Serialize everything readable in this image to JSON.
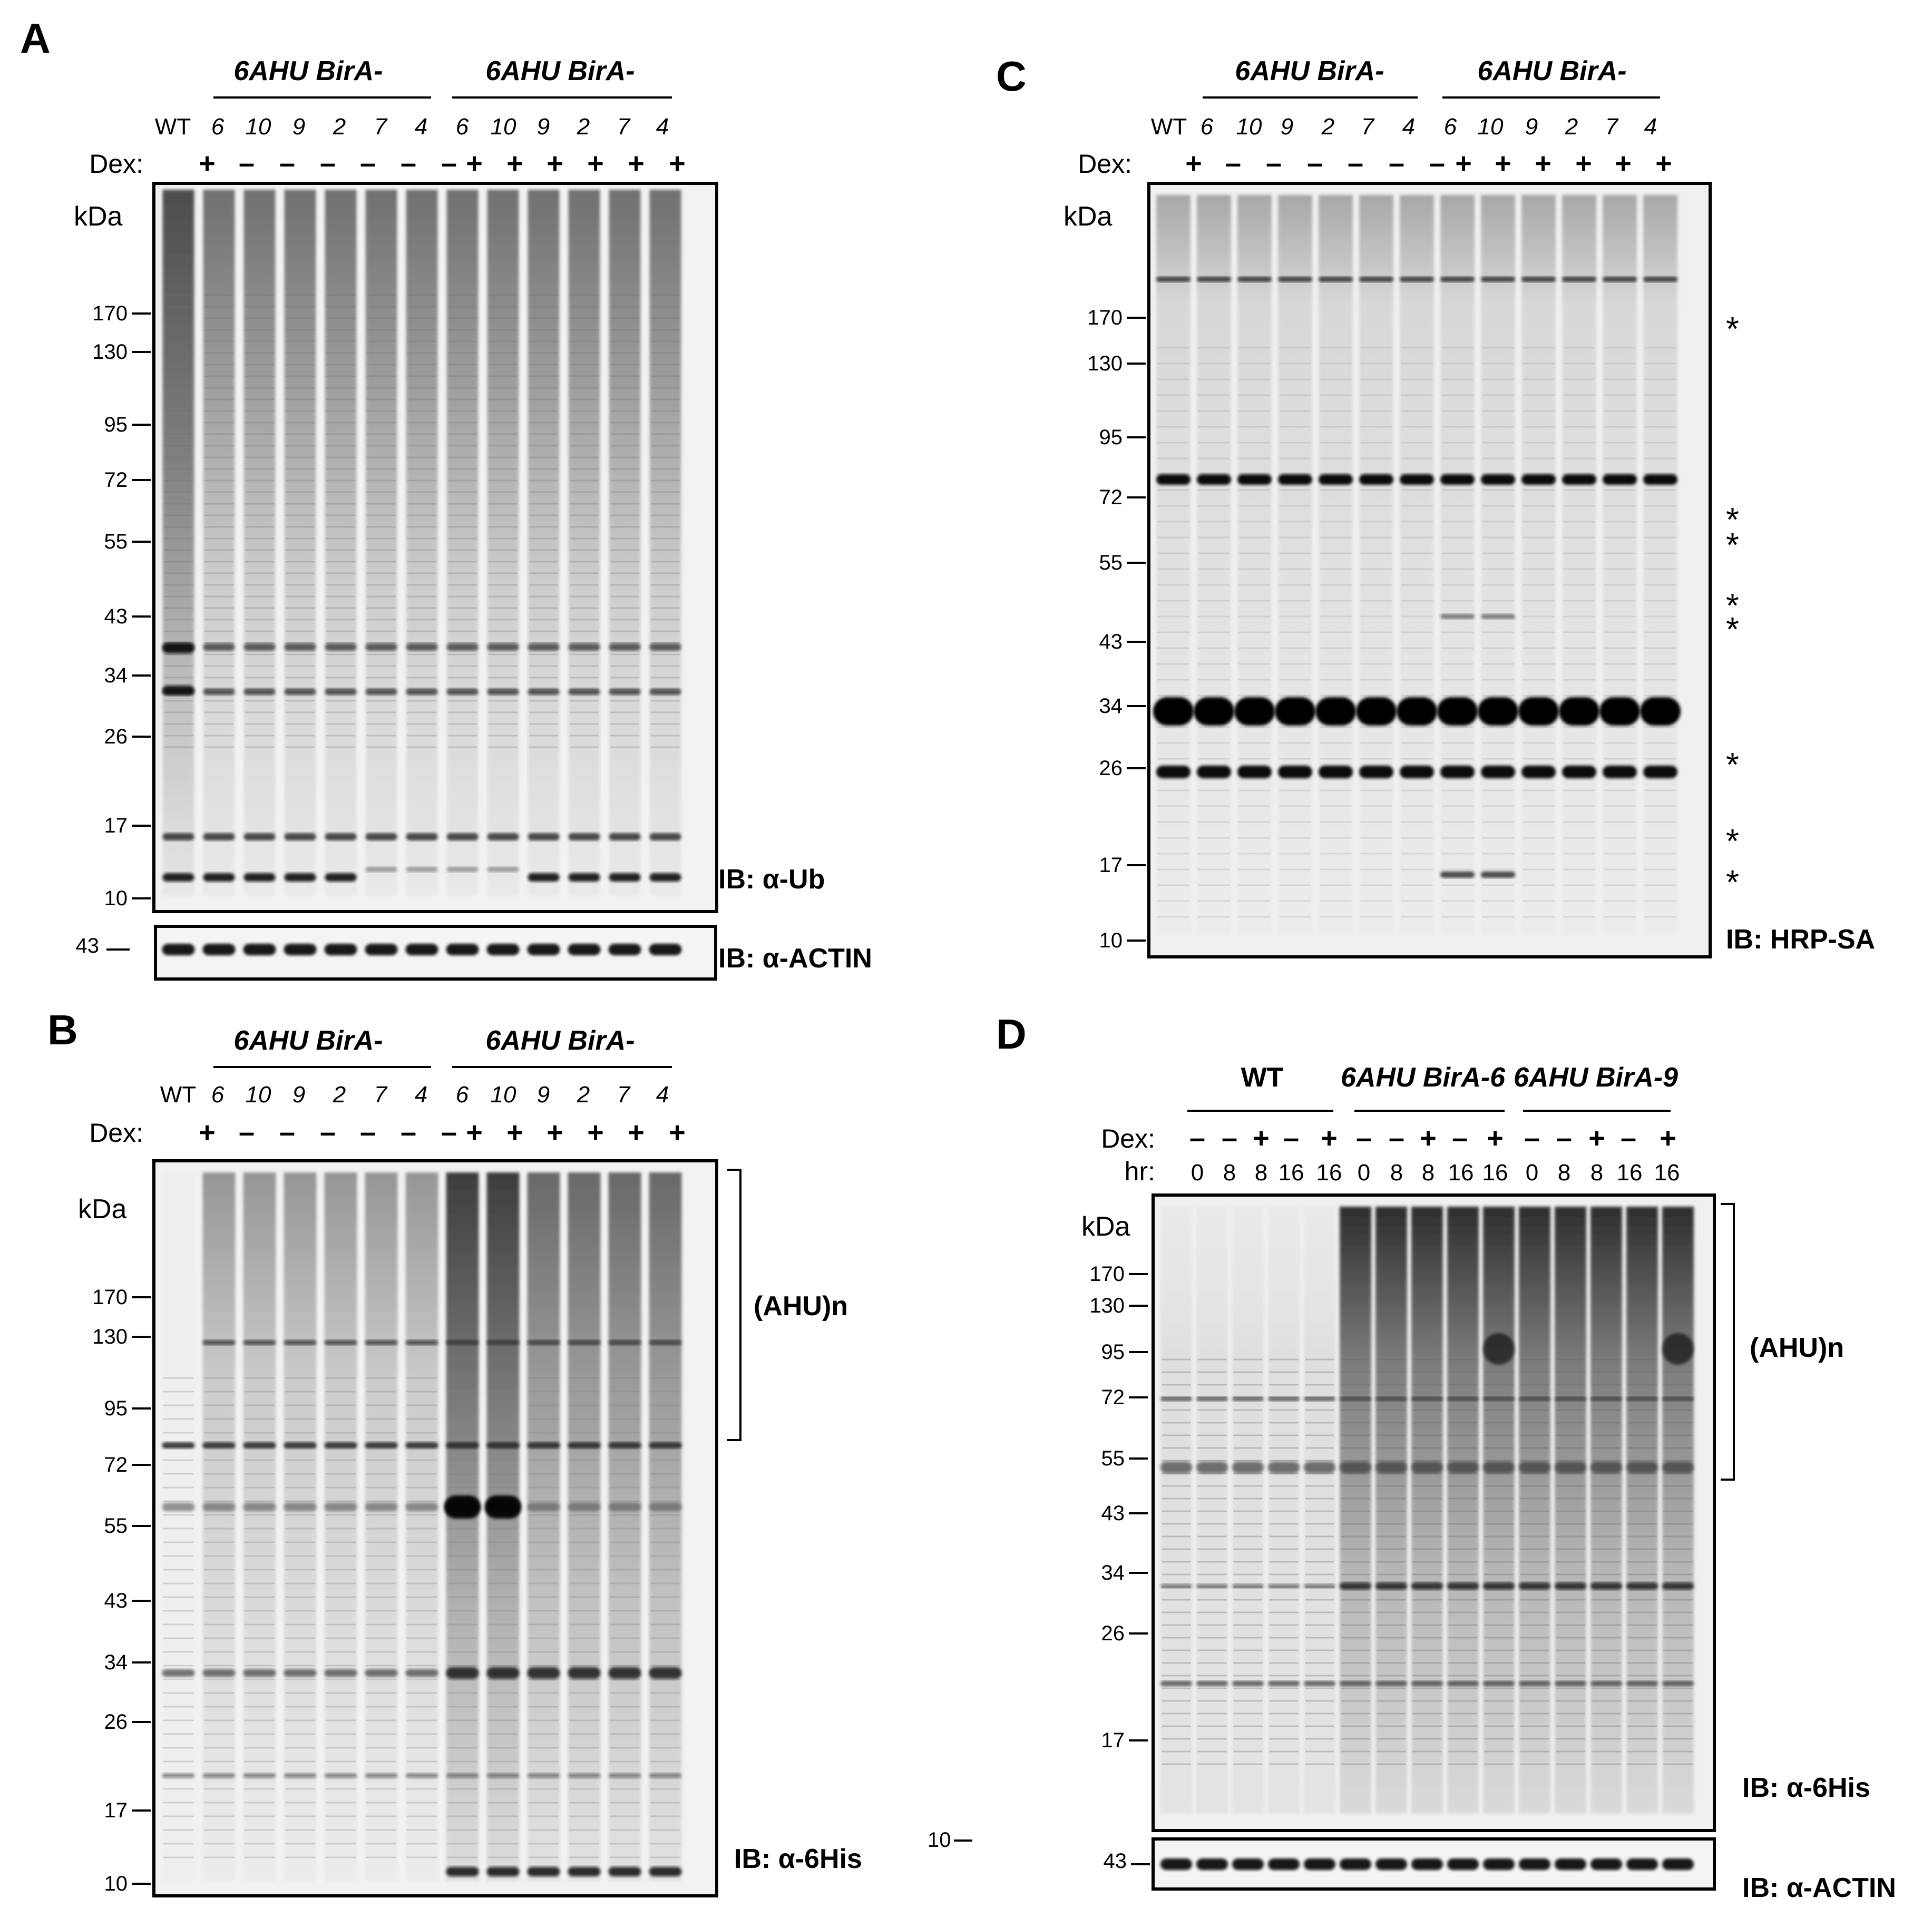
{
  "panels": {
    "A": {
      "letter": "A",
      "groups": [
        "6AHU BirA-",
        "6AHU BirA-"
      ],
      "lane_labels": [
        "WT",
        "6",
        "10",
        "9",
        "2",
        "7",
        "4",
        "6",
        "10",
        "9",
        "2",
        "7",
        "4"
      ],
      "dex_label": "Dex:",
      "dex": [
        "+",
        "–",
        "–",
        "–",
        "–",
        "–",
        "–",
        "+",
        "+",
        "+",
        "+",
        "+",
        "+"
      ],
      "kda_label": "kDa",
      "markers": [
        "170",
        "130",
        "95",
        "72",
        "55",
        "43",
        "34",
        "26",
        "17",
        "10"
      ],
      "ib_label": "IB: α-Ub",
      "actin_marker": "43",
      "actin_label": "IB: α-ACTIN"
    },
    "B": {
      "letter": "B",
      "groups": [
        "6AHU BirA-",
        "6AHU BirA-"
      ],
      "lane_labels": [
        "WT",
        "6",
        "10",
        "9",
        "2",
        "7",
        "4",
        "6",
        "10",
        "9",
        "2",
        "7",
        "4"
      ],
      "dex_label": "Dex:",
      "dex": [
        "+",
        "–",
        "–",
        "–",
        "–",
        "–",
        "–",
        "+",
        "+",
        "+",
        "+",
        "+",
        "+"
      ],
      "kda_label": "kDa",
      "markers": [
        "170",
        "130",
        "95",
        "72",
        "55",
        "43",
        "34",
        "26",
        "17",
        "10"
      ],
      "bracket_label": "(AHU)n",
      "ib_label": "IB: α-6His",
      "stray_marker": "10"
    },
    "C": {
      "letter": "C",
      "groups": [
        "6AHU BirA-",
        "6AHU BirA-"
      ],
      "lane_labels": [
        "WT",
        "6",
        "10",
        "9",
        "2",
        "7",
        "4",
        "6",
        "10",
        "9",
        "2",
        "7",
        "4"
      ],
      "dex_label": "Dex:",
      "dex": [
        "+",
        "–",
        "–",
        "–",
        "–",
        "–",
        "–",
        "+",
        "+",
        "+",
        "+",
        "+",
        "+"
      ],
      "kda_label": "kDa",
      "markers": [
        "170",
        "130",
        "95",
        "72",
        "55",
        "43",
        "34",
        "26",
        "17",
        "10"
      ],
      "asterisk": "*",
      "ib_label": "IB: HRP-SA"
    },
    "D": {
      "letter": "D",
      "groups": [
        "WT",
        "6AHU BirA-6",
        "6AHU BirA-9"
      ],
      "dex_label": "Dex:",
      "dex": [
        "–",
        "–",
        "+",
        "–",
        "+",
        "–",
        "–",
        "+",
        "–",
        "+",
        "–",
        "–",
        "+",
        "–",
        "+"
      ],
      "hr_label": "hr:",
      "hr": [
        "0",
        "8",
        "8",
        "16",
        "16",
        "0",
        "8",
        "8",
        "16",
        "16",
        "0",
        "8",
        "8",
        "16",
        "16"
      ],
      "kda_label": "kDa",
      "markers": [
        "170",
        "130",
        "95",
        "72",
        "55",
        "43",
        "34",
        "26",
        "17"
      ],
      "bracket_label": "(AHU)n",
      "ib_label": "IB: α-6His",
      "actin_marker": "43",
      "actin_label": "IB: α-ACTIN"
    }
  }
}
